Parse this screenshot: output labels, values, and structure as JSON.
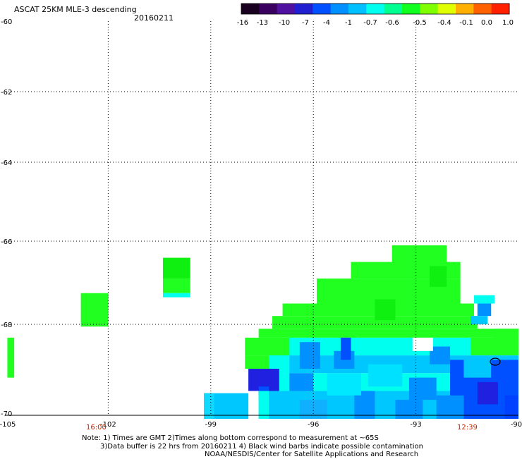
{
  "header": {
    "title": "ASCAT 25KM MLE-3 descending",
    "date": "20160211"
  },
  "colorbar": {
    "tick_labels": [
      "-16",
      "-13",
      "-10",
      "-7",
      "-4",
      "-1",
      "-0.7",
      "-0.6",
      "-0.5",
      "-0.4",
      "-0.1",
      "0.0",
      "1.0"
    ],
    "colors": [
      "#1a0020",
      "#3a0060",
      "#5010a0",
      "#2020d0",
      "#0050ff",
      "#0090ff",
      "#00c0ff",
      "#00ffee",
      "#00ff90",
      "#10ff20",
      "#80ff00",
      "#e0ff00",
      "#ffb000",
      "#ff6000",
      "#ff2000"
    ]
  },
  "time_labels": {
    "left": "16:00",
    "right": "12:39"
  },
  "notes": [
    "Note: 1) Times are GMT 2)Times along bottom correspond to measurement at ~65S",
    "3)Data buffer is 22 hrs from 20160211 4) Black wind barbs indicate possible contamination",
    "NOAA/NESDIS/Center for Satellite Applications and Research"
  ],
  "chart_data": {
    "type": "heatmap",
    "title": "ASCAT 25KM MLE-3 descending",
    "x_ticks": [
      "-105",
      "-102",
      "-99",
      "-96",
      "-93",
      "-90"
    ],
    "y_ticks": [
      "-60",
      "-62",
      "-64",
      "-66",
      "-68",
      "-70"
    ],
    "xlim": [
      -105,
      -90
    ],
    "ylim": [
      -70.2,
      -60
    ],
    "grid": true,
    "colorbar_range": [
      "-16",
      "1.0"
    ],
    "regions": [
      {
        "lon": [
          -104.9,
          -104.7
        ],
        "lat": [
          -68.4,
          -69.3
        ],
        "value": "-0.5",
        "color": "#20ff20"
      },
      {
        "lon": [
          -102.8,
          -102.0
        ],
        "lat": [
          -67.2,
          -68.0
        ],
        "value": "-0.5",
        "color": "#20ff20"
      },
      {
        "lon": [
          -100.4,
          -99.6
        ],
        "lat": [
          -66.4,
          -67.3
        ],
        "value": "-0.5",
        "color": "#20ff20"
      },
      {
        "lon": [
          -99.2,
          -97.9
        ],
        "lat": [
          -69.5,
          -70.2
        ],
        "value": "-0.7",
        "color": "#00c8ff"
      },
      {
        "lon": [
          -97.9,
          -90.0
        ],
        "lat": [
          -66.1,
          -70.2
        ],
        "value": "-0.6 to -7",
        "color": "mixed"
      }
    ]
  }
}
